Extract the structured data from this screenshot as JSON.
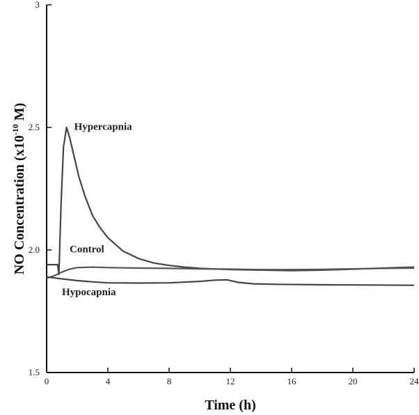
{
  "chart_data": {
    "type": "line",
    "title": "",
    "xlabel": "Time (h)",
    "ylabel": {
      "main": "NO Concentration (x10",
      "sup": "-10",
      "tail": " M)"
    },
    "xlim": [
      0,
      24
    ],
    "ylim": [
      1.5,
      3
    ],
    "xticks": [
      0,
      4,
      8,
      12,
      16,
      20,
      24
    ],
    "xtick_labels": [
      "0",
      "4",
      "8",
      "12",
      "16",
      "20",
      "24"
    ],
    "yticks": [
      1.5,
      2.0,
      2.5,
      3
    ],
    "ytick_labels": [
      "1.5",
      "2.0",
      "2.5",
      "3"
    ],
    "grid": false,
    "series": [
      {
        "name": "Hypercapnia",
        "color": "#444444",
        "x": [
          0,
          0.5,
          0.72,
          0.8,
          0.95,
          1.1,
          1.3,
          1.5,
          1.8,
          2.1,
          2.5,
          3,
          3.5,
          4,
          5,
          6,
          7,
          8,
          9,
          10,
          12,
          14,
          16,
          18,
          20,
          22,
          24
        ],
        "y": [
          1.94,
          1.94,
          1.94,
          1.9,
          2.2,
          2.42,
          2.5,
          2.46,
          2.38,
          2.3,
          2.22,
          2.14,
          2.09,
          2.05,
          1.995,
          1.965,
          1.947,
          1.937,
          1.93,
          1.925,
          1.92,
          1.918,
          1.916,
          1.918,
          1.922,
          1.926,
          1.93
        ]
      },
      {
        "name": "Control",
        "color": "#555555",
        "x": [
          0,
          0.5,
          1,
          1.5,
          2,
          3,
          4,
          6,
          8,
          10,
          12,
          14,
          16,
          18,
          20,
          22,
          24
        ],
        "y": [
          1.885,
          1.895,
          1.91,
          1.922,
          1.928,
          1.93,
          1.928,
          1.926,
          1.925,
          1.923,
          1.922,
          1.92,
          1.92,
          1.921,
          1.923,
          1.925,
          1.926
        ]
      },
      {
        "name": "Hypocapnia",
        "color": "#444444",
        "x": [
          0,
          1,
          2,
          3,
          4,
          6,
          8,
          10,
          11,
          11.8,
          12.5,
          13.5,
          15,
          18,
          21,
          24
        ],
        "y": [
          1.89,
          1.882,
          1.875,
          1.87,
          1.866,
          1.865,
          1.866,
          1.872,
          1.877,
          1.878,
          1.868,
          1.862,
          1.86,
          1.858,
          1.857,
          1.856
        ]
      }
    ],
    "annotations": [
      {
        "text": "Hypercapnia",
        "x": 1.8,
        "y": 2.49
      },
      {
        "text": "Control",
        "x": 1.5,
        "y": 1.99
      },
      {
        "text": "Hypocapnia",
        "x": 1.0,
        "y": 1.815
      }
    ],
    "legend": "none"
  }
}
